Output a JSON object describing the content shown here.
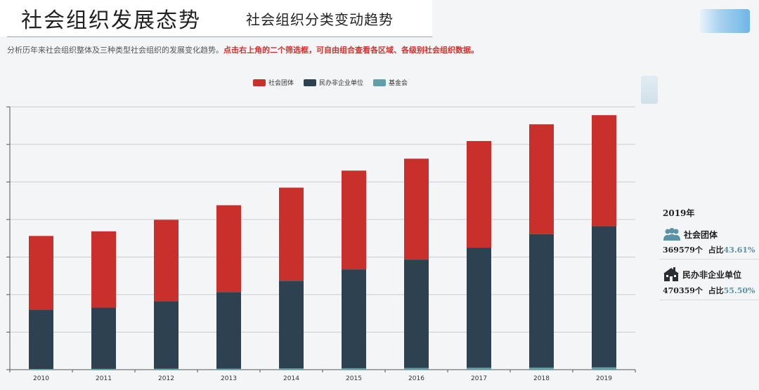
{
  "header": {
    "title": "社会组织发展态势",
    "subtitle": "社会组织分类变动趋势"
  },
  "description": {
    "normal": "分析历年来社会组织整体及三种类型社会组织的发展变化趋势。",
    "highlight": "点击右上角的二个筛选框，可自由组合查看各区域、各级别社会组织数据。"
  },
  "colors": {
    "social_groups": "#c9302c",
    "private_non_enterprise": "#2e4150",
    "foundations": "#61a0a8"
  },
  "chart_data": {
    "type": "bar",
    "stacked": true,
    "categories": [
      "2010",
      "2011",
      "2012",
      "2013",
      "2014",
      "2015",
      "2016",
      "2017",
      "2018",
      "2019"
    ],
    "series": [
      {
        "name": "社会团体",
        "values": [
          245000,
          254000,
          271000,
          289000,
          310000,
          329000,
          336000,
          355000,
          366000,
          369579
        ]
      },
      {
        "name": "民办非企业单位",
        "values": [
          198000,
          204000,
          225000,
          255000,
          292000,
          329000,
          361000,
          400000,
          444000,
          470359
        ]
      },
      {
        "name": "基金会",
        "values": [
          2200,
          2600,
          3000,
          3500,
          4100,
          4800,
          5500,
          6300,
          7000,
          7500
        ]
      }
    ],
    "ylim": [
      0,
      1000000
    ],
    "ytick_values": [
      0,
      125000,
      250000,
      375000,
      500000,
      625000,
      750000,
      875000
    ],
    "grid": true,
    "legend_position": "top-center"
  },
  "info_panel": {
    "year": "2019年",
    "items": [
      {
        "icon": "people-group-icon",
        "label": "社会团体",
        "count": "369579个",
        "ratio_label": "占比",
        "ratio": "43.61%"
      },
      {
        "icon": "building-icon",
        "label": "民办非企业单位",
        "count": "470359个",
        "ratio_label": "占比",
        "ratio": "55.50%"
      }
    ]
  }
}
